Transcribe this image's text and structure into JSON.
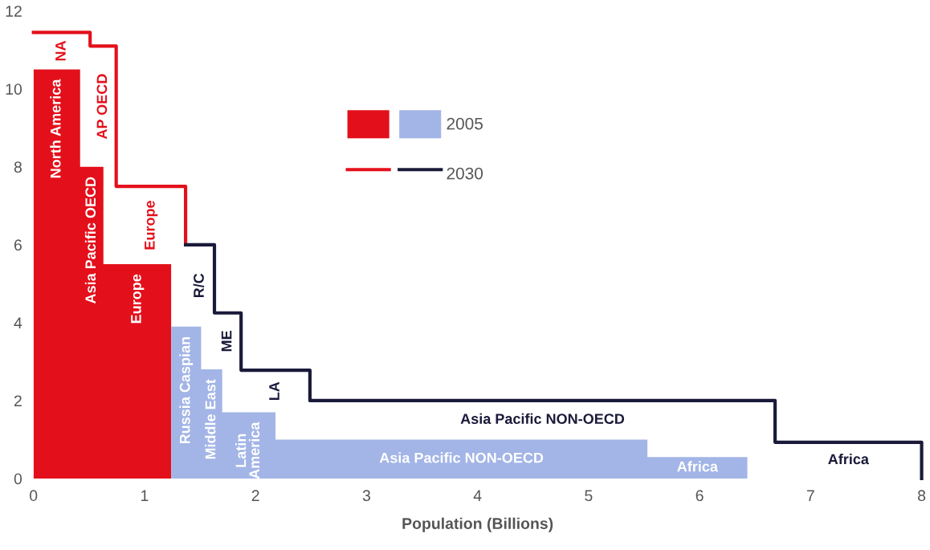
{
  "chart_data": {
    "type": "step",
    "xlabel": "Population (Billions)",
    "xlim": [
      0,
      8
    ],
    "ylim": [
      0,
      12
    ],
    "xticks": [
      0,
      1,
      2,
      3,
      4,
      5,
      6,
      7,
      8
    ],
    "yticks": [
      0,
      2,
      4,
      6,
      8,
      10,
      12
    ],
    "grid": false,
    "legend": "top",
    "series": [
      {
        "type": "area",
        "color": "#e3101b",
        "x": [
          0,
          0.42,
          0.42,
          0.63,
          0.63,
          1.24,
          1.24
        ],
        "values": [
          10.5,
          10.5,
          8.0,
          8.0,
          5.5,
          5.5,
          0
        ]
      },
      {
        "name": "2005",
        "type": "area",
        "color": "#a3b5e6",
        "x": [
          1.24,
          1.51,
          1.51,
          1.7,
          1.7,
          2.18,
          2.18,
          5.53,
          5.53,
          6.43,
          6.43
        ],
        "values": [
          3.9,
          3.9,
          2.8,
          2.8,
          1.7,
          1.7,
          1.0,
          1.0,
          0.55,
          0.55,
          0
        ]
      },
      {
        "color": "#e3101b",
        "x": [
          0,
          0.51,
          0.745,
          1.37
        ],
        "values": [
          11.45,
          11.1,
          7.5,
          6.0
        ]
      },
      {
        "name": "2030",
        "color": "#1a1a3a",
        "x": [
          1.37,
          1.63,
          1.87,
          2.49,
          6.68,
          8.0
        ],
        "values": [
          6.0,
          4.25,
          2.78,
          2.0,
          0.93,
          0
        ]
      }
    ],
    "annotations": [
      "North America",
      "Asia Pacific OECD",
      "Europe",
      "Russia Caspian",
      "Middle East",
      "Latin\nAmerica",
      "Asia Pacific NON-OECD",
      "Africa",
      "NA",
      "AP OECD",
      "Europe",
      "R/C",
      "ME",
      "LA",
      "Asia Pacific NON-OECD",
      "Africa"
    ]
  }
}
